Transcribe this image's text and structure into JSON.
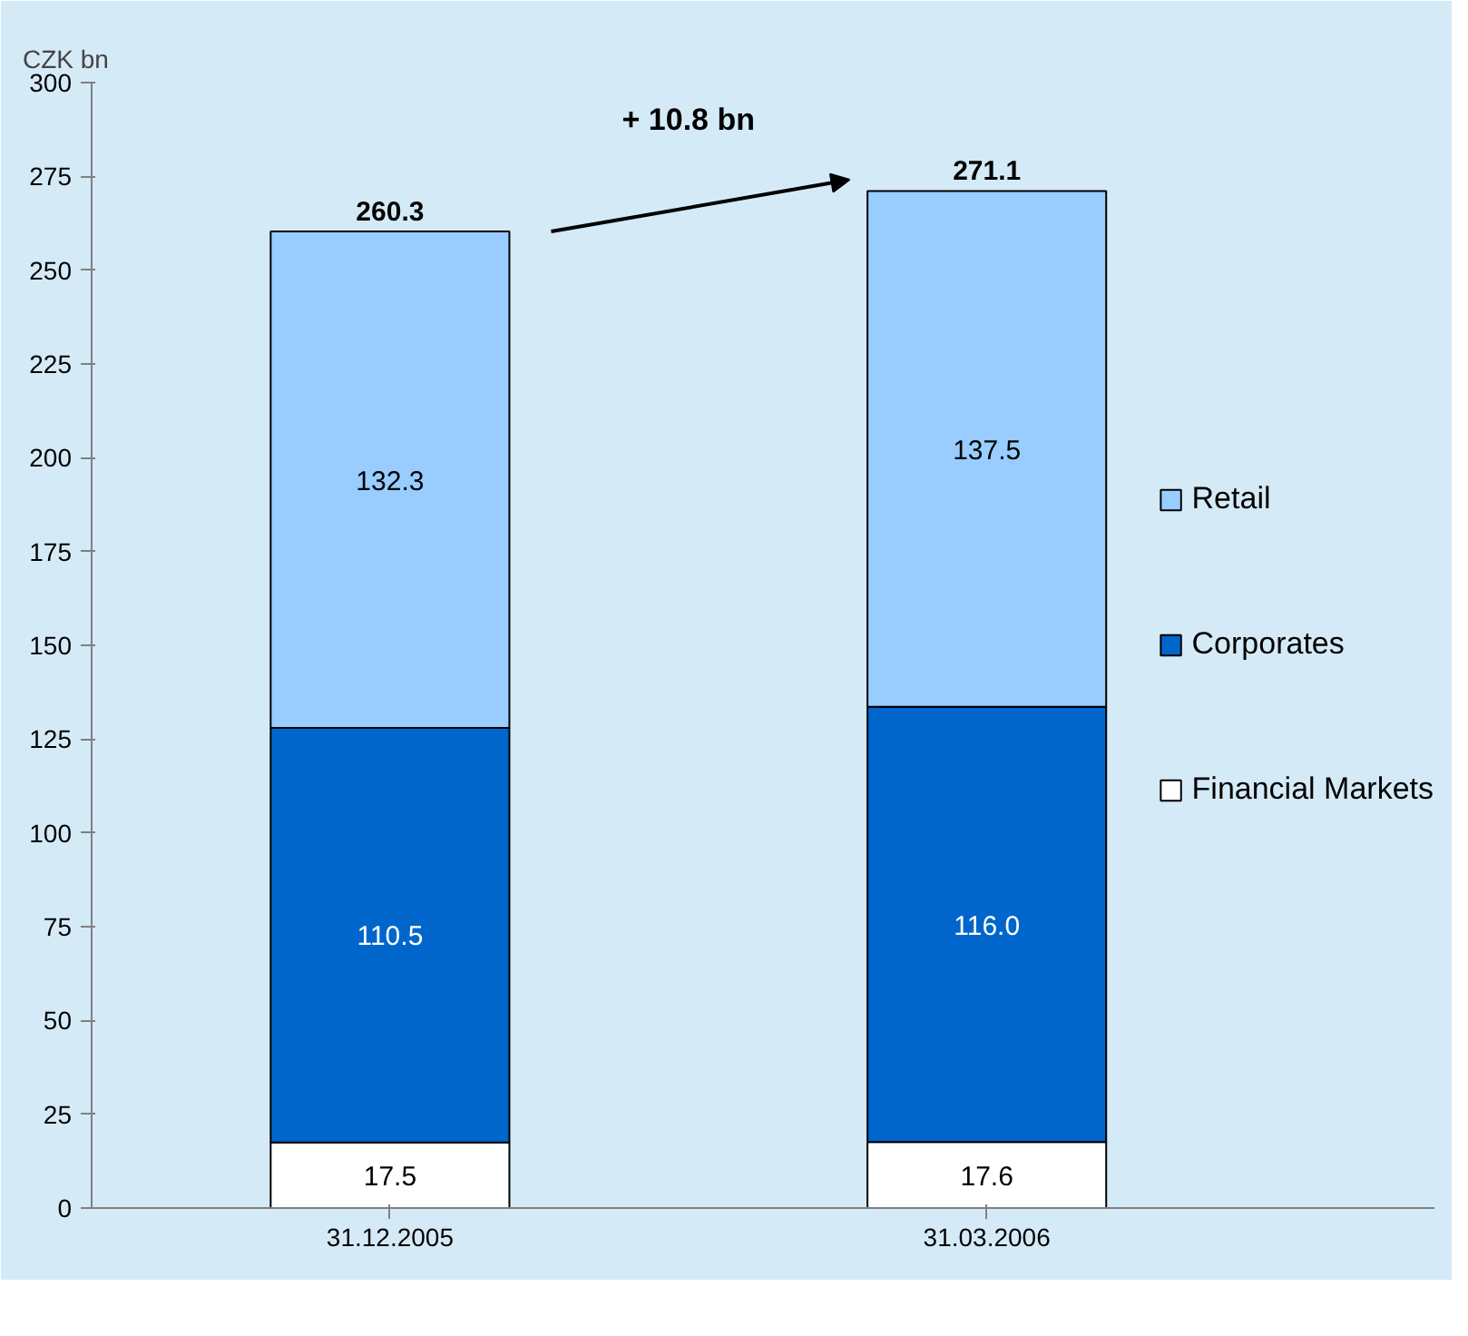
{
  "chart_data": {
    "type": "bar",
    "stacked": true,
    "ylabel": "CZK bn",
    "categories": [
      "31.12.2005",
      "31.03.2006"
    ],
    "series": [
      {
        "name": "Financial Markets",
        "color": "#ffffff",
        "values": [
          17.5,
          17.6
        ],
        "value_labels": [
          "17.5",
          "17.6"
        ]
      },
      {
        "name": "Corporates",
        "color": "#0066cc",
        "values": [
          110.5,
          116.0
        ],
        "value_labels": [
          "110.5",
          "116.0"
        ]
      },
      {
        "name": "Retail",
        "color": "#99ccff",
        "values": [
          132.3,
          137.5
        ],
        "value_labels": [
          "132.3",
          "137.5"
        ]
      }
    ],
    "totals": [
      "260.3",
      "271.1"
    ],
    "annotations": [
      "+ 10.8 bn"
    ],
    "ylim": [
      0,
      300
    ],
    "yticks": [
      0,
      25,
      50,
      75,
      100,
      125,
      150,
      175,
      200,
      225,
      250,
      275,
      300
    ],
    "grid": false,
    "legend": "right"
  }
}
